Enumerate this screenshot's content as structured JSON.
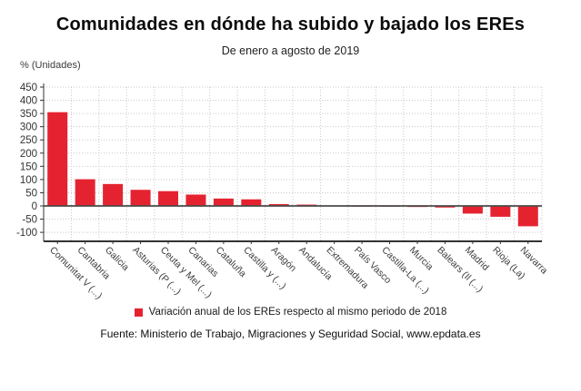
{
  "header": {
    "title": "Comunidades en dónde ha subido y bajado los EREs",
    "subtitle": "De enero a agosto de 2019"
  },
  "axes": {
    "y_unit_label": "% (Unidades)"
  },
  "legend": {
    "label": "Variación anual de los EREs respecto al mismo periodo de 2018",
    "marker_color": "#e52330"
  },
  "footer": {
    "source": "Fuente: Ministerio de Trabajo, Migraciones y Seguridad Social, www.epdata.es"
  },
  "colors": {
    "bar": "#e52330",
    "grid": "#c9c9c9",
    "axis": "#333333",
    "zero_line": "#4a4a4a",
    "tick_text": "#333333",
    "category_text": "#3d3d3d"
  },
  "chart_data": {
    "type": "bar",
    "title": "Comunidades en dónde ha subido y bajado los EREs",
    "subtitle": "De enero a agosto de 2019",
    "xlabel": "",
    "ylabel": "% (Unidades)",
    "ylim": [
      -100,
      450
    ],
    "ytick_step": 50,
    "yticks": [
      450,
      400,
      350,
      300,
      250,
      200,
      150,
      100,
      50,
      0,
      -50,
      -100
    ],
    "grid": true,
    "legend_position": "bottom",
    "categories": [
      "Comunitat V (...)",
      "Cantabria",
      "Galicia",
      "Asturias (P (...)",
      "Ceuta y Mel (...)",
      "Canarias",
      "Cataluña",
      "Castilla y (...)",
      "Aragón",
      "Andalucía",
      "Extremadura",
      "País Vasco",
      "Castilla-La (...)",
      "Murcia",
      "Balears (Il (...)",
      "Madrid",
      "Rioja (La)",
      "Navarra"
    ],
    "values": [
      355,
      101,
      83,
      61,
      56,
      43,
      28,
      25,
      7,
      5,
      1,
      -1,
      -3,
      -4,
      -6,
      -29,
      -41,
      -77
    ],
    "series_name": "Variación anual de los EREs respecto al mismo periodo de 2018"
  }
}
